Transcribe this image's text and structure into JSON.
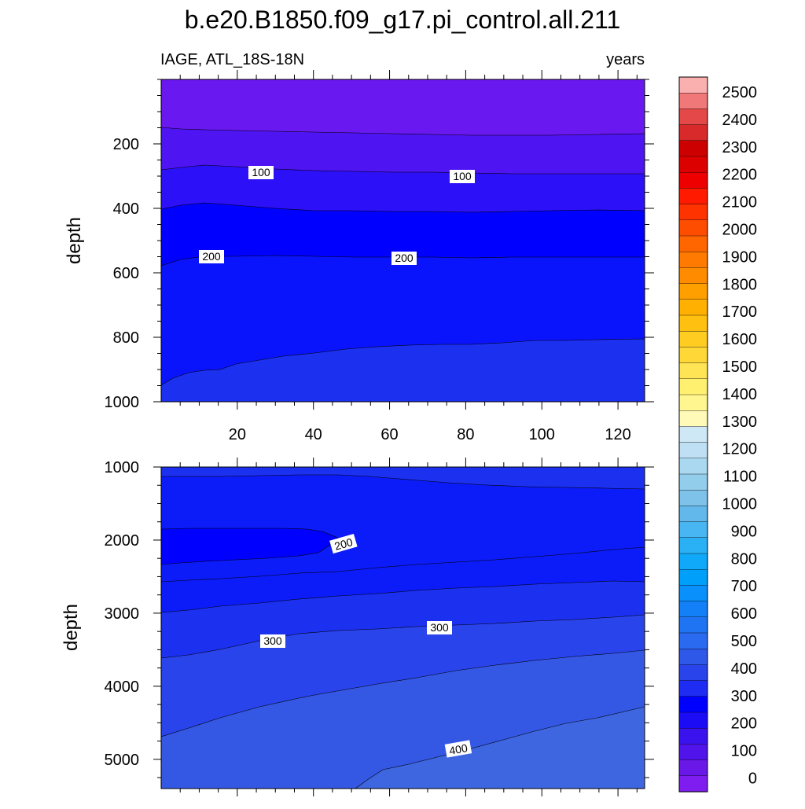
{
  "chart_data": {
    "type": "heatmap",
    "title": "b.e20.B1850.f09_g17.pi_control.all.211",
    "left_subtitle": "IAGE, ATL_18S-18N",
    "right_subtitle": "years",
    "colorbar": {
      "labels": [
        "2500",
        "2400",
        "2300",
        "2200",
        "2100",
        "2000",
        "1900",
        "1800",
        "1700",
        "1600",
        "1500",
        "1400",
        "1300",
        "1200",
        "1100",
        "1000",
        "900",
        "800",
        "700",
        "600",
        "500",
        "400",
        "300",
        "200",
        "100",
        "0"
      ],
      "colors": [
        "#fbb0b0",
        "#f07878",
        "#e44848",
        "#d82a2a",
        "#cc0000",
        "#dd0000",
        "#ee0000",
        "#ff1a00",
        "#ff3300",
        "#ff4d00",
        "#ff6600",
        "#ff7a00",
        "#ff8c00",
        "#ffa000",
        "#ffb000",
        "#ffc010",
        "#ffcc22",
        "#ffd838",
        "#ffe455",
        "#fff070",
        "#fff690",
        "#fffab8",
        "#cfe8f6",
        "#bfe0f4",
        "#a9d8f0",
        "#93cdec",
        "#7ec2ea",
        "#62b8ea",
        "#47b6f2",
        "#2ab0f5",
        "#10a8f8",
        "#00a0fa",
        "#0a90fa",
        "#1480f8",
        "#1e74f2",
        "#2a6af0",
        "#2e58e8",
        "#2a44ec",
        "#1e2cf4",
        "#0000ff",
        "#1c0cf6",
        "#3a12ee",
        "#5014ea",
        "#6a18e8",
        "#7f1df0"
      ]
    },
    "panels": [
      {
        "ylabel": "depth",
        "yticks": [
          200,
          400,
          600,
          800,
          1000
        ],
        "xticks": [
          20,
          40,
          60,
          80,
          100,
          120
        ],
        "xlim": [
          0,
          127
        ],
        "ylim": [
          0,
          1000
        ],
        "fill_colors": [
          "#6a18f0",
          "#4e14f2",
          "#2c10f8",
          "#0000ff",
          "#0a14fc",
          "#1c30f0"
        ],
        "contour_labels": [
          "100",
          "100",
          "200",
          "200"
        ]
      },
      {
        "ylabel": "depth",
        "yticks": [
          1000,
          2000,
          3000,
          4000,
          5000
        ],
        "xlim": [
          0,
          127
        ],
        "ylim": [
          1000,
          5400
        ],
        "fill_colors": [
          "#1c30f0",
          "#0c1cf8",
          "#0000ff",
          "#0c1cf8",
          "#1c30f0",
          "#2a44ec",
          "#3458e4",
          "#3e66e0"
        ],
        "contour_labels": [
          "200",
          "300",
          "300",
          "400"
        ]
      }
    ]
  }
}
